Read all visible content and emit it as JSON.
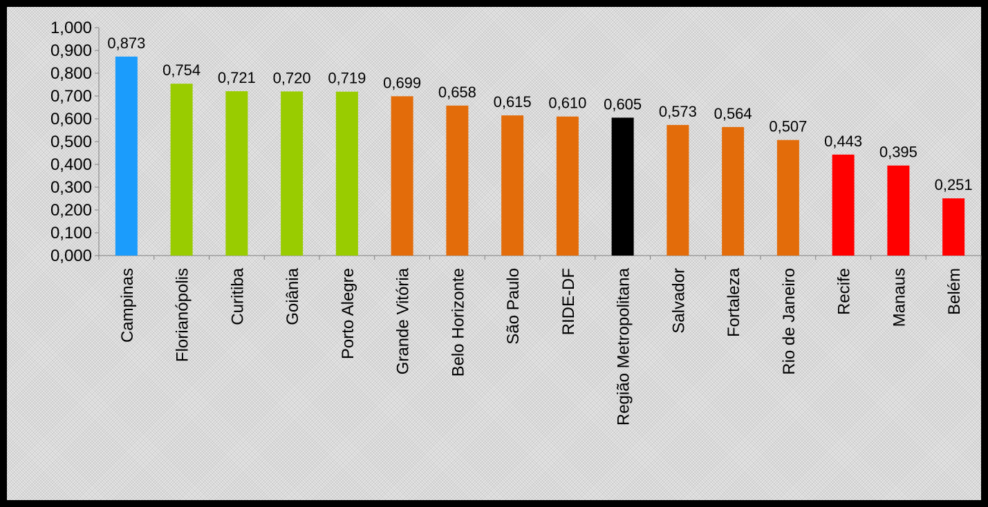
{
  "chart_data": {
    "type": "bar",
    "title": "",
    "xlabel": "",
    "ylabel": "",
    "ylim": [
      0,
      1.0
    ],
    "y_ticks": [
      "0,000",
      "0,100",
      "0,200",
      "0,300",
      "0,400",
      "0,500",
      "0,600",
      "0,700",
      "0,800",
      "0,900",
      "1,000"
    ],
    "grid": false,
    "legend": "none",
    "categories": [
      "Campinas",
      "Florianópolis",
      "Curitiba",
      "Goiânia",
      "Porto Alegre",
      "Grande Vitória",
      "Belo Horizonte",
      "São Paulo",
      "RIDE-DF",
      "Região Metropolitana",
      "Salvador",
      "Fortaleza",
      "Rio de Janeiro",
      "Recife",
      "Manaus",
      "Belém"
    ],
    "values": [
      0.873,
      0.754,
      0.721,
      0.72,
      0.719,
      0.699,
      0.658,
      0.615,
      0.61,
      0.605,
      0.573,
      0.564,
      0.507,
      0.443,
      0.395,
      0.251
    ],
    "value_labels": [
      "0,873",
      "0,754",
      "0,721",
      "0,720",
      "0,719",
      "0,699",
      "0,658",
      "0,615",
      "0,610",
      "0,605",
      "0,573",
      "0,564",
      "0,507",
      "0,443",
      "0,395",
      "0,251"
    ],
    "bar_colors": [
      "#1b9cfc",
      "#99cc00",
      "#99cc00",
      "#99cc00",
      "#99cc00",
      "#e36c0a",
      "#e36c0a",
      "#e36c0a",
      "#e36c0a",
      "#000000",
      "#e36c0a",
      "#e36c0a",
      "#e36c0a",
      "#ff0000",
      "#ff0000",
      "#ff0000"
    ]
  }
}
